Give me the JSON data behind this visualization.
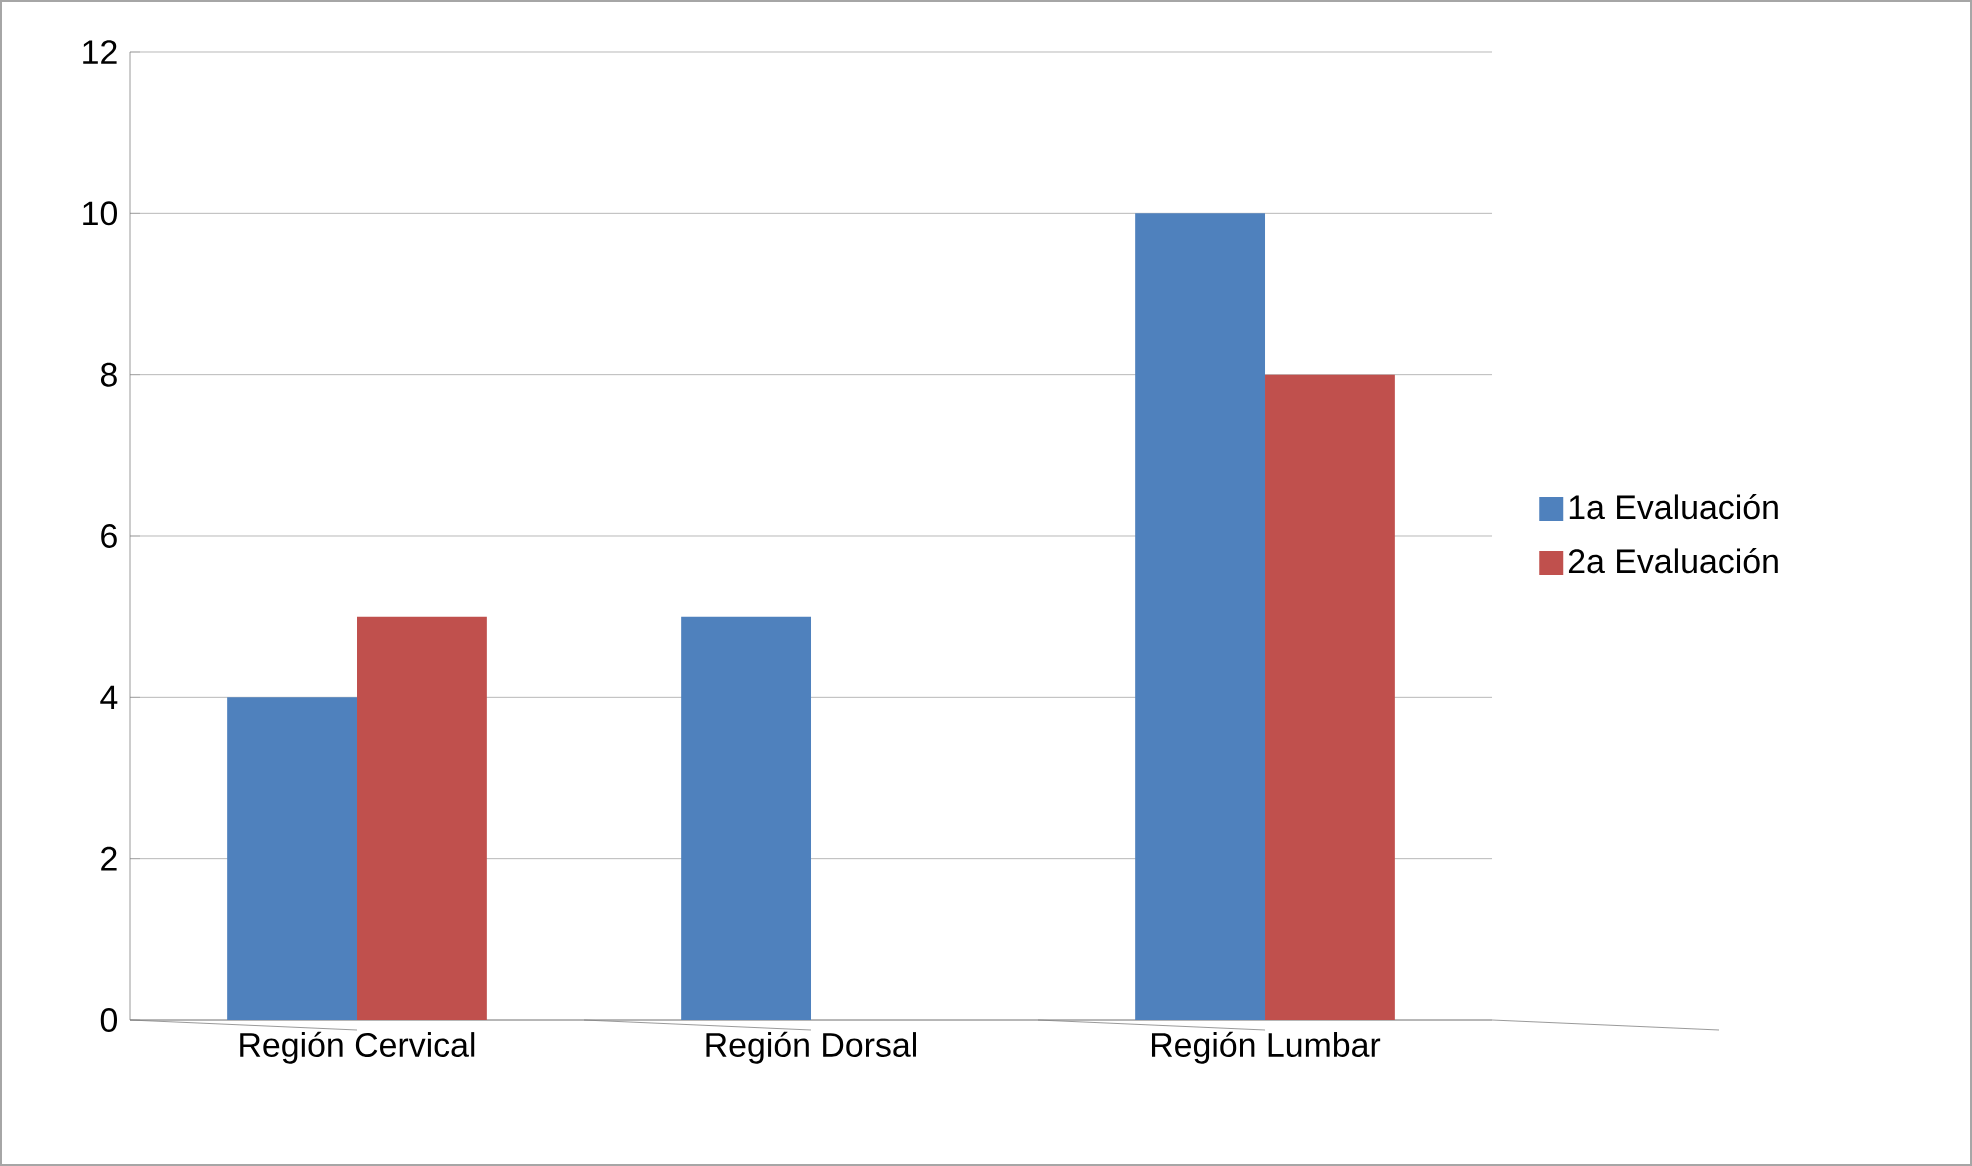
{
  "chart_data": {
    "type": "bar",
    "categories": [
      "Región Cervical",
      "Región Dorsal",
      "Región Lumbar"
    ],
    "series": [
      {
        "name": "1a Evaluación",
        "color": "#4f81bd",
        "values": [
          4,
          5,
          10
        ]
      },
      {
        "name": "2a Evaluación",
        "color": "#c0504d",
        "values": [
          5,
          0,
          8
        ]
      }
    ],
    "ylim": [
      0,
      12
    ],
    "yticks": [
      0,
      2,
      4,
      6,
      8,
      10,
      12
    ],
    "grid": "y",
    "legend": "right"
  }
}
